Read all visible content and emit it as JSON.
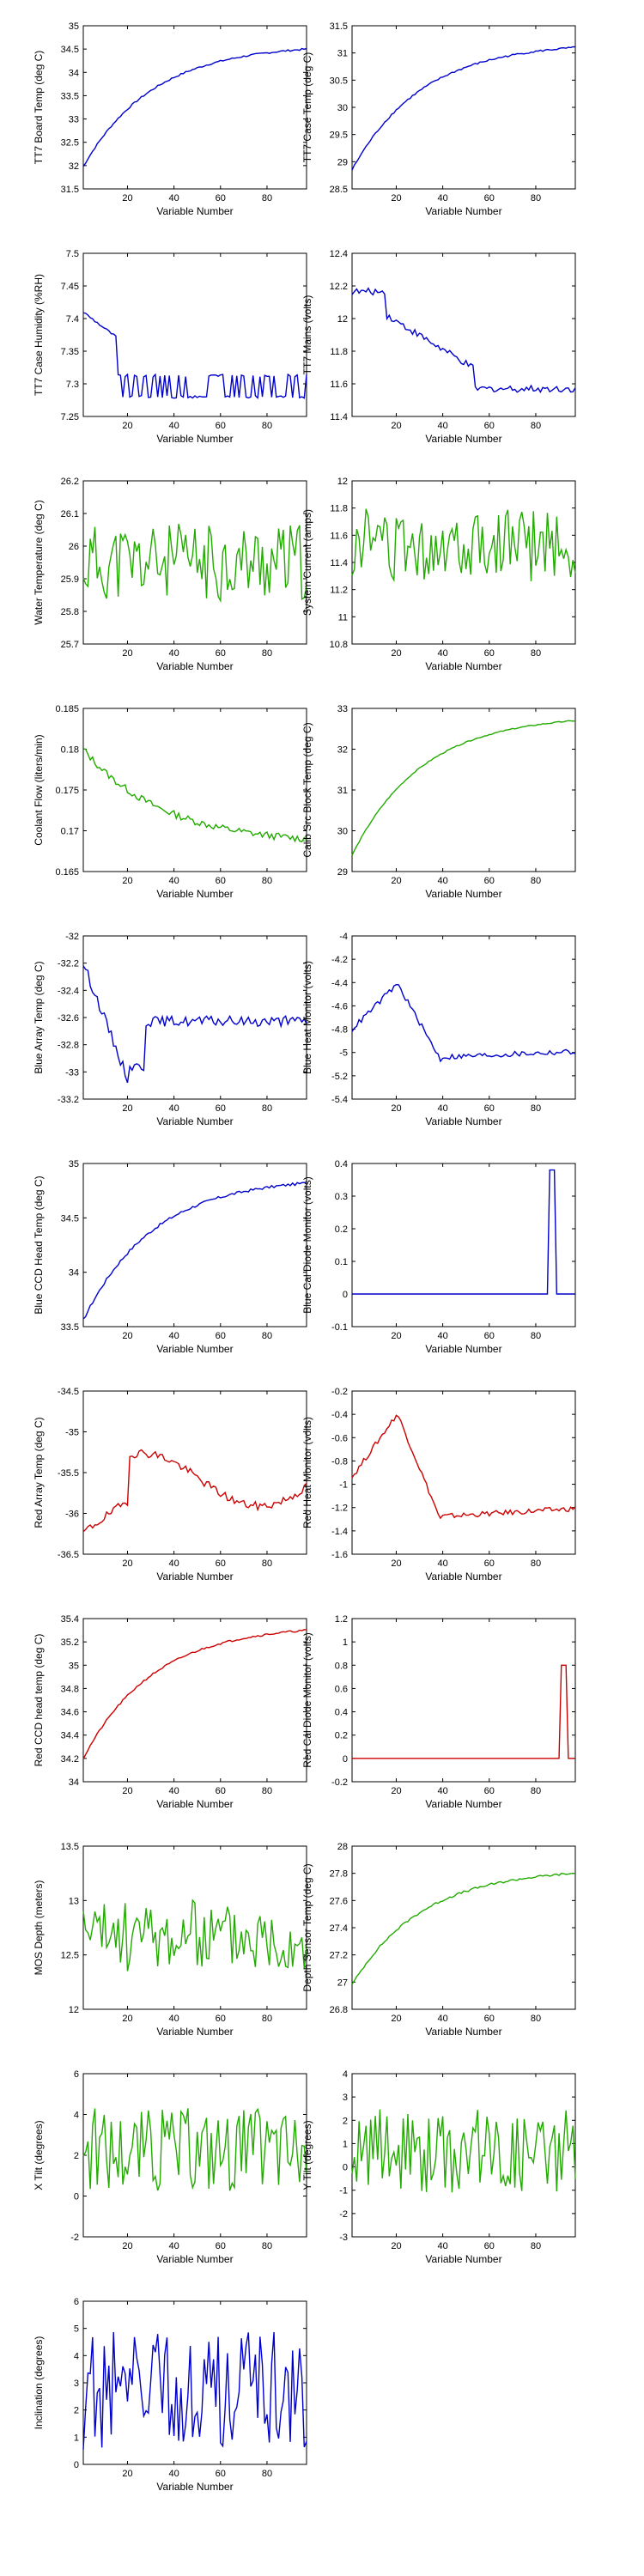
{
  "colors": {
    "blue": "#0000cc",
    "green": "#22aa00",
    "red": "#cc0000"
  },
  "chart_data": [
    {
      "type": "line",
      "xlabel": "Variable Number",
      "ylabel": "TT7 Board Temp (deg C)",
      "xlim": [
        1,
        97
      ],
      "ylim": [
        31.5,
        35
      ],
      "xticks": [
        20,
        40,
        60,
        80
      ],
      "yticks": [
        "31.5",
        "32",
        "32.5",
        "33",
        "33.5",
        "34",
        "34.5",
        "35"
      ],
      "color": "blue",
      "shape": "riseSat",
      "range": [
        31.98,
        34.5
      ],
      "noise": 0.015
    },
    {
      "type": "line",
      "xlabel": "Variable Number",
      "ylabel": "TT7 Case Temp (deg C)",
      "xlim": [
        1,
        97
      ],
      "ylim": [
        28.5,
        31.5
      ],
      "xticks": [
        20,
        40,
        60,
        80
      ],
      "yticks": [
        "28.5",
        "29",
        "29.5",
        "30",
        "30.5",
        "31",
        "31.5"
      ],
      "color": "blue",
      "shape": "riseSat",
      "range": [
        28.85,
        31.1
      ],
      "noise": 0.015
    },
    {
      "type": "line",
      "xlabel": "Variable Number",
      "ylabel": "TT7 Case Humidity (%RH)",
      "xlim": [
        1,
        97
      ],
      "ylim": [
        7.25,
        7.5
      ],
      "xticks": [
        20,
        40,
        60,
        80
      ],
      "yticks": [
        "7.25",
        "7.3",
        "7.35",
        "7.4",
        "7.45",
        "7.5"
      ],
      "color": "blue",
      "shape": "stepDown",
      "range": [
        7.28,
        7.41
      ],
      "noise": 0.03
    },
    {
      "type": "line",
      "xlabel": "Variable Number",
      "ylabel": "TT7 Mains  (volts)",
      "xlim": [
        1,
        97
      ],
      "ylim": [
        11.4,
        12.4
      ],
      "xticks": [
        20,
        40,
        60,
        80
      ],
      "yticks": [
        "11.4",
        "11.6",
        "11.8",
        "12",
        "12.2",
        "12.4"
      ],
      "color": "blue",
      "shape": "mains",
      "range": [
        11.5,
        12.2
      ],
      "noise": 0.06
    },
    {
      "type": "line",
      "xlabel": "Variable Number",
      "ylabel": "Water Temperature (deg C)",
      "xlim": [
        1,
        97
      ],
      "ylim": [
        25.7,
        26.2
      ],
      "xticks": [
        20,
        40,
        60,
        80
      ],
      "yticks": [
        "25.7",
        "25.8",
        "25.9",
        "26",
        "26.1",
        "26.2"
      ],
      "color": "green",
      "shape": "noise",
      "range": [
        25.85,
        26.05
      ],
      "noise": 0.35
    },
    {
      "type": "line",
      "xlabel": "Variable Number",
      "ylabel": "System Current (amps)",
      "xlim": [
        1,
        97
      ],
      "ylim": [
        10.8,
        12
      ],
      "xticks": [
        20,
        40,
        60,
        80
      ],
      "yticks": [
        "10.8",
        "11",
        "11.2",
        "11.4",
        "11.6",
        "11.8",
        "12"
      ],
      "color": "green",
      "shape": "noise",
      "range": [
        11.3,
        11.75
      ],
      "noise": 0.45
    },
    {
      "type": "line",
      "xlabel": "Variable Number",
      "ylabel": "Coolant Flow (liters/min)",
      "xlim": [
        1,
        97
      ],
      "ylim": [
        0.165,
        0.185
      ],
      "xticks": [
        20,
        40,
        60,
        80
      ],
      "yticks": [
        "0.165",
        "0.17",
        "0.175",
        "0.18",
        "0.185"
      ],
      "color": "green",
      "shape": "fallSat",
      "range": [
        0.169,
        0.18
      ],
      "noise": 0.08
    },
    {
      "type": "line",
      "xlabel": "Variable Number",
      "ylabel": "Calib Src Block Temp (deg C)",
      "xlim": [
        1,
        97
      ],
      "ylim": [
        29,
        33
      ],
      "xticks": [
        20,
        40,
        60,
        80
      ],
      "yticks": [
        "29",
        "30",
        "31",
        "32",
        "33"
      ],
      "color": "green",
      "shape": "riseSat",
      "range": [
        29.4,
        32.7
      ],
      "noise": 0.008
    },
    {
      "type": "line",
      "xlabel": "Variable Number",
      "ylabel": "Blue Array Temp (deg C)",
      "xlim": [
        1,
        97
      ],
      "ylim": [
        -33.2,
        -32
      ],
      "xticks": [
        20,
        40,
        60,
        80
      ],
      "yticks": [
        "-33.2",
        "-33",
        "-32.8",
        "-32.6",
        "-32.4",
        "-32.2",
        "-32"
      ],
      "color": "blue",
      "shape": "dipRecover",
      "range": [
        -33.15,
        -32.2
      ],
      "noise": 0.08
    },
    {
      "type": "line",
      "xlabel": "Variable Number",
      "ylabel": "Blue Heat Monitor (volts)",
      "xlim": [
        1,
        97
      ],
      "ylim": [
        -5.4,
        -4
      ],
      "xticks": [
        20,
        40,
        60,
        80
      ],
      "yticks": [
        "-5.4",
        "-5.2",
        "-5",
        "-4.8",
        "-4.6",
        "-4.4",
        "-4.2",
        "-4"
      ],
      "color": "blue",
      "shape": "humpDecay",
      "range": [
        -5.2,
        -4.4
      ],
      "noise": 0.06
    },
    {
      "type": "line",
      "xlabel": "Variable Number",
      "ylabel": "Blue CCD Head Temp (deg C)",
      "xlim": [
        1,
        97
      ],
      "ylim": [
        33.5,
        35
      ],
      "xticks": [
        20,
        40,
        60,
        80
      ],
      "yticks": [
        "33.5",
        "34",
        "34.5",
        "35"
      ],
      "color": "blue",
      "shape": "riseSat",
      "range": [
        33.56,
        34.82
      ],
      "noise": 0.02
    },
    {
      "type": "line",
      "xlabel": "Variable Number",
      "ylabel": "Blue Cal Diode Monitor (volts)",
      "xlim": [
        1,
        97
      ],
      "ylim": [
        -0.1,
        0.4
      ],
      "xticks": [
        20,
        40,
        60,
        80
      ],
      "yticks": [
        "-0.1",
        "0",
        "0.1",
        "0.2",
        "0.3",
        "0.4"
      ],
      "color": "blue",
      "shape": "spike",
      "range": [
        0,
        0.38
      ],
      "spikeAt": [
        86,
        88
      ],
      "noise": 0
    },
    {
      "type": "line",
      "xlabel": "Variable Number",
      "ylabel": "Red Array Temp (deg C)",
      "xlim": [
        1,
        97
      ],
      "ylim": [
        -36.5,
        -34.5
      ],
      "xticks": [
        20,
        40,
        60,
        80
      ],
      "yticks": [
        "-36.5",
        "-36",
        "-35.5",
        "-35",
        "-34.5"
      ],
      "color": "red",
      "shape": "redArray",
      "range": [
        -36.3,
        -35.0
      ],
      "noise": 0.08
    },
    {
      "type": "line",
      "xlabel": "Variable Number",
      "ylabel": "Red Heat Monitor (volts)",
      "xlim": [
        1,
        97
      ],
      "ylim": [
        -1.6,
        -0.2
      ],
      "xticks": [
        20,
        40,
        60,
        80
      ],
      "yticks": [
        "-1.6",
        "-1.4",
        "-1.2",
        "-1",
        "-0.8",
        "-0.6",
        "-0.4",
        "-0.2"
      ],
      "color": "red",
      "shape": "humpDecay",
      "range": [
        -1.5,
        -0.38
      ],
      "noise": 0.04
    },
    {
      "type": "line",
      "xlabel": "Variable Number",
      "ylabel": "Red CCD head temp (deg C)",
      "xlim": [
        1,
        97
      ],
      "ylim": [
        34,
        35.4
      ],
      "xticks": [
        20,
        40,
        60,
        80
      ],
      "yticks": [
        "34",
        "34.2",
        "34.4",
        "34.6",
        "34.8",
        "35",
        "35.2",
        "35.4"
      ],
      "color": "red",
      "shape": "riseSat",
      "range": [
        34.2,
        35.3
      ],
      "noise": 0.015
    },
    {
      "type": "line",
      "xlabel": "Variable Number",
      "ylabel": "Red Cal Diode Monitor (volts)",
      "xlim": [
        1,
        97
      ],
      "ylim": [
        -0.2,
        1.2
      ],
      "xticks": [
        20,
        40,
        60,
        80
      ],
      "yticks": [
        "-0.2",
        "0",
        "0.2",
        "0.4",
        "0.6",
        "0.8",
        "1",
        "1.2"
      ],
      "color": "red",
      "shape": "spike",
      "range": [
        0,
        0.8
      ],
      "spikeAt": [
        91,
        93
      ],
      "noise": 0
    },
    {
      "type": "line",
      "xlabel": "Variable Number",
      "ylabel": "MOS Depth  (meters)",
      "xlim": [
        1,
        97
      ],
      "ylim": [
        12,
        13.5
      ],
      "xticks": [
        20,
        40,
        60,
        80
      ],
      "yticks": [
        "12",
        "12.5",
        "13",
        "13.5"
      ],
      "color": "green",
      "shape": "noise",
      "range": [
        12.4,
        12.95
      ],
      "noise": 0.45
    },
    {
      "type": "line",
      "xlabel": "Variable Number",
      "ylabel": "Depth Sensor Temp (deg C)",
      "xlim": [
        1,
        97
      ],
      "ylim": [
        26.8,
        28
      ],
      "xticks": [
        20,
        40,
        60,
        80
      ],
      "yticks": [
        "26.8",
        "27",
        "27.2",
        "27.4",
        "27.6",
        "27.8",
        "28"
      ],
      "color": "green",
      "shape": "riseSat",
      "range": [
        26.98,
        27.8
      ],
      "noise": 0.02
    },
    {
      "type": "line",
      "xlabel": "Variable Number",
      "ylabel": "X Tilt  (degrees)",
      "xlim": [
        1,
        97
      ],
      "ylim": [
        -2,
        6
      ],
      "xticks": [
        20,
        40,
        60,
        80
      ],
      "yticks": [
        "-2",
        "0",
        "2",
        "4",
        "6"
      ],
      "color": "green",
      "shape": "noise",
      "range": [
        0.5,
        4
      ],
      "noise": 0.55
    },
    {
      "type": "line",
      "xlabel": "Variable Number",
      "ylabel": "Y Tilt  (degrees)",
      "xlim": [
        1,
        97
      ],
      "ylim": [
        -3,
        4
      ],
      "xticks": [
        20,
        40,
        60,
        80
      ],
      "yticks": [
        "-3",
        "-2",
        "-1",
        "0",
        "1",
        "2",
        "3",
        "4"
      ],
      "color": "green",
      "shape": "noise",
      "range": [
        -0.8,
        2.2
      ],
      "noise": 0.5
    },
    {
      "type": "line",
      "xlabel": "Variable Number",
      "ylabel": "Inclination  (degrees)",
      "xlim": [
        1,
        97
      ],
      "ylim": [
        0,
        6
      ],
      "xticks": [
        20,
        40,
        60,
        80
      ],
      "yticks": [
        "0",
        "1",
        "2",
        "3",
        "4",
        "5",
        "6"
      ],
      "color": "blue",
      "shape": "noise",
      "range": [
        0.8,
        4.5
      ],
      "noise": 0.55
    }
  ]
}
